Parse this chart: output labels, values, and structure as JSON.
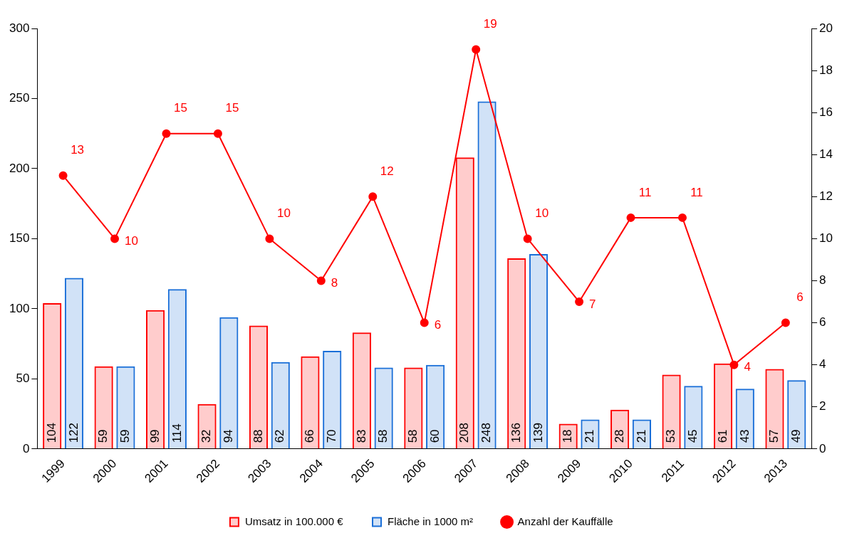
{
  "chart_data": {
    "type": "bar",
    "categories": [
      "1999",
      "2000",
      "2001",
      "2002",
      "2003",
      "2004",
      "2005",
      "2006",
      "2007",
      "2008",
      "2009",
      "2010",
      "2011",
      "2012",
      "2013"
    ],
    "series": [
      {
        "name": "Umsatz in 100.000 €",
        "color": "#ff0000",
        "values": [
          104,
          59,
          99,
          32,
          88,
          66,
          83,
          58,
          208,
          136,
          18,
          28,
          53,
          61,
          57
        ]
      },
      {
        "name": "Fläche in 1000 m²",
        "color": "#1a6fd8",
        "values": [
          122,
          59,
          114,
          94,
          62,
          70,
          58,
          60,
          248,
          139,
          21,
          21,
          45,
          43,
          49
        ]
      },
      {
        "name": "Anzahl der Kauffälle",
        "type": "line",
        "axis": "y2",
        "color": "#ff0000",
        "values": [
          13,
          10,
          15,
          15,
          10,
          8,
          12,
          6,
          19,
          10,
          7,
          11,
          11,
          4,
          6
        ]
      }
    ],
    "ylim": [
      0,
      300
    ],
    "yticks": [
      0,
      50,
      100,
      150,
      200,
      250,
      300
    ],
    "y2lim": [
      0,
      20
    ],
    "y2ticks": [
      0,
      2,
      4,
      6,
      8,
      10,
      12,
      14,
      16,
      18,
      20
    ],
    "grid": false,
    "legend": "bottom",
    "marker": "circle",
    "line_style": "solid",
    "data_labels": true
  }
}
